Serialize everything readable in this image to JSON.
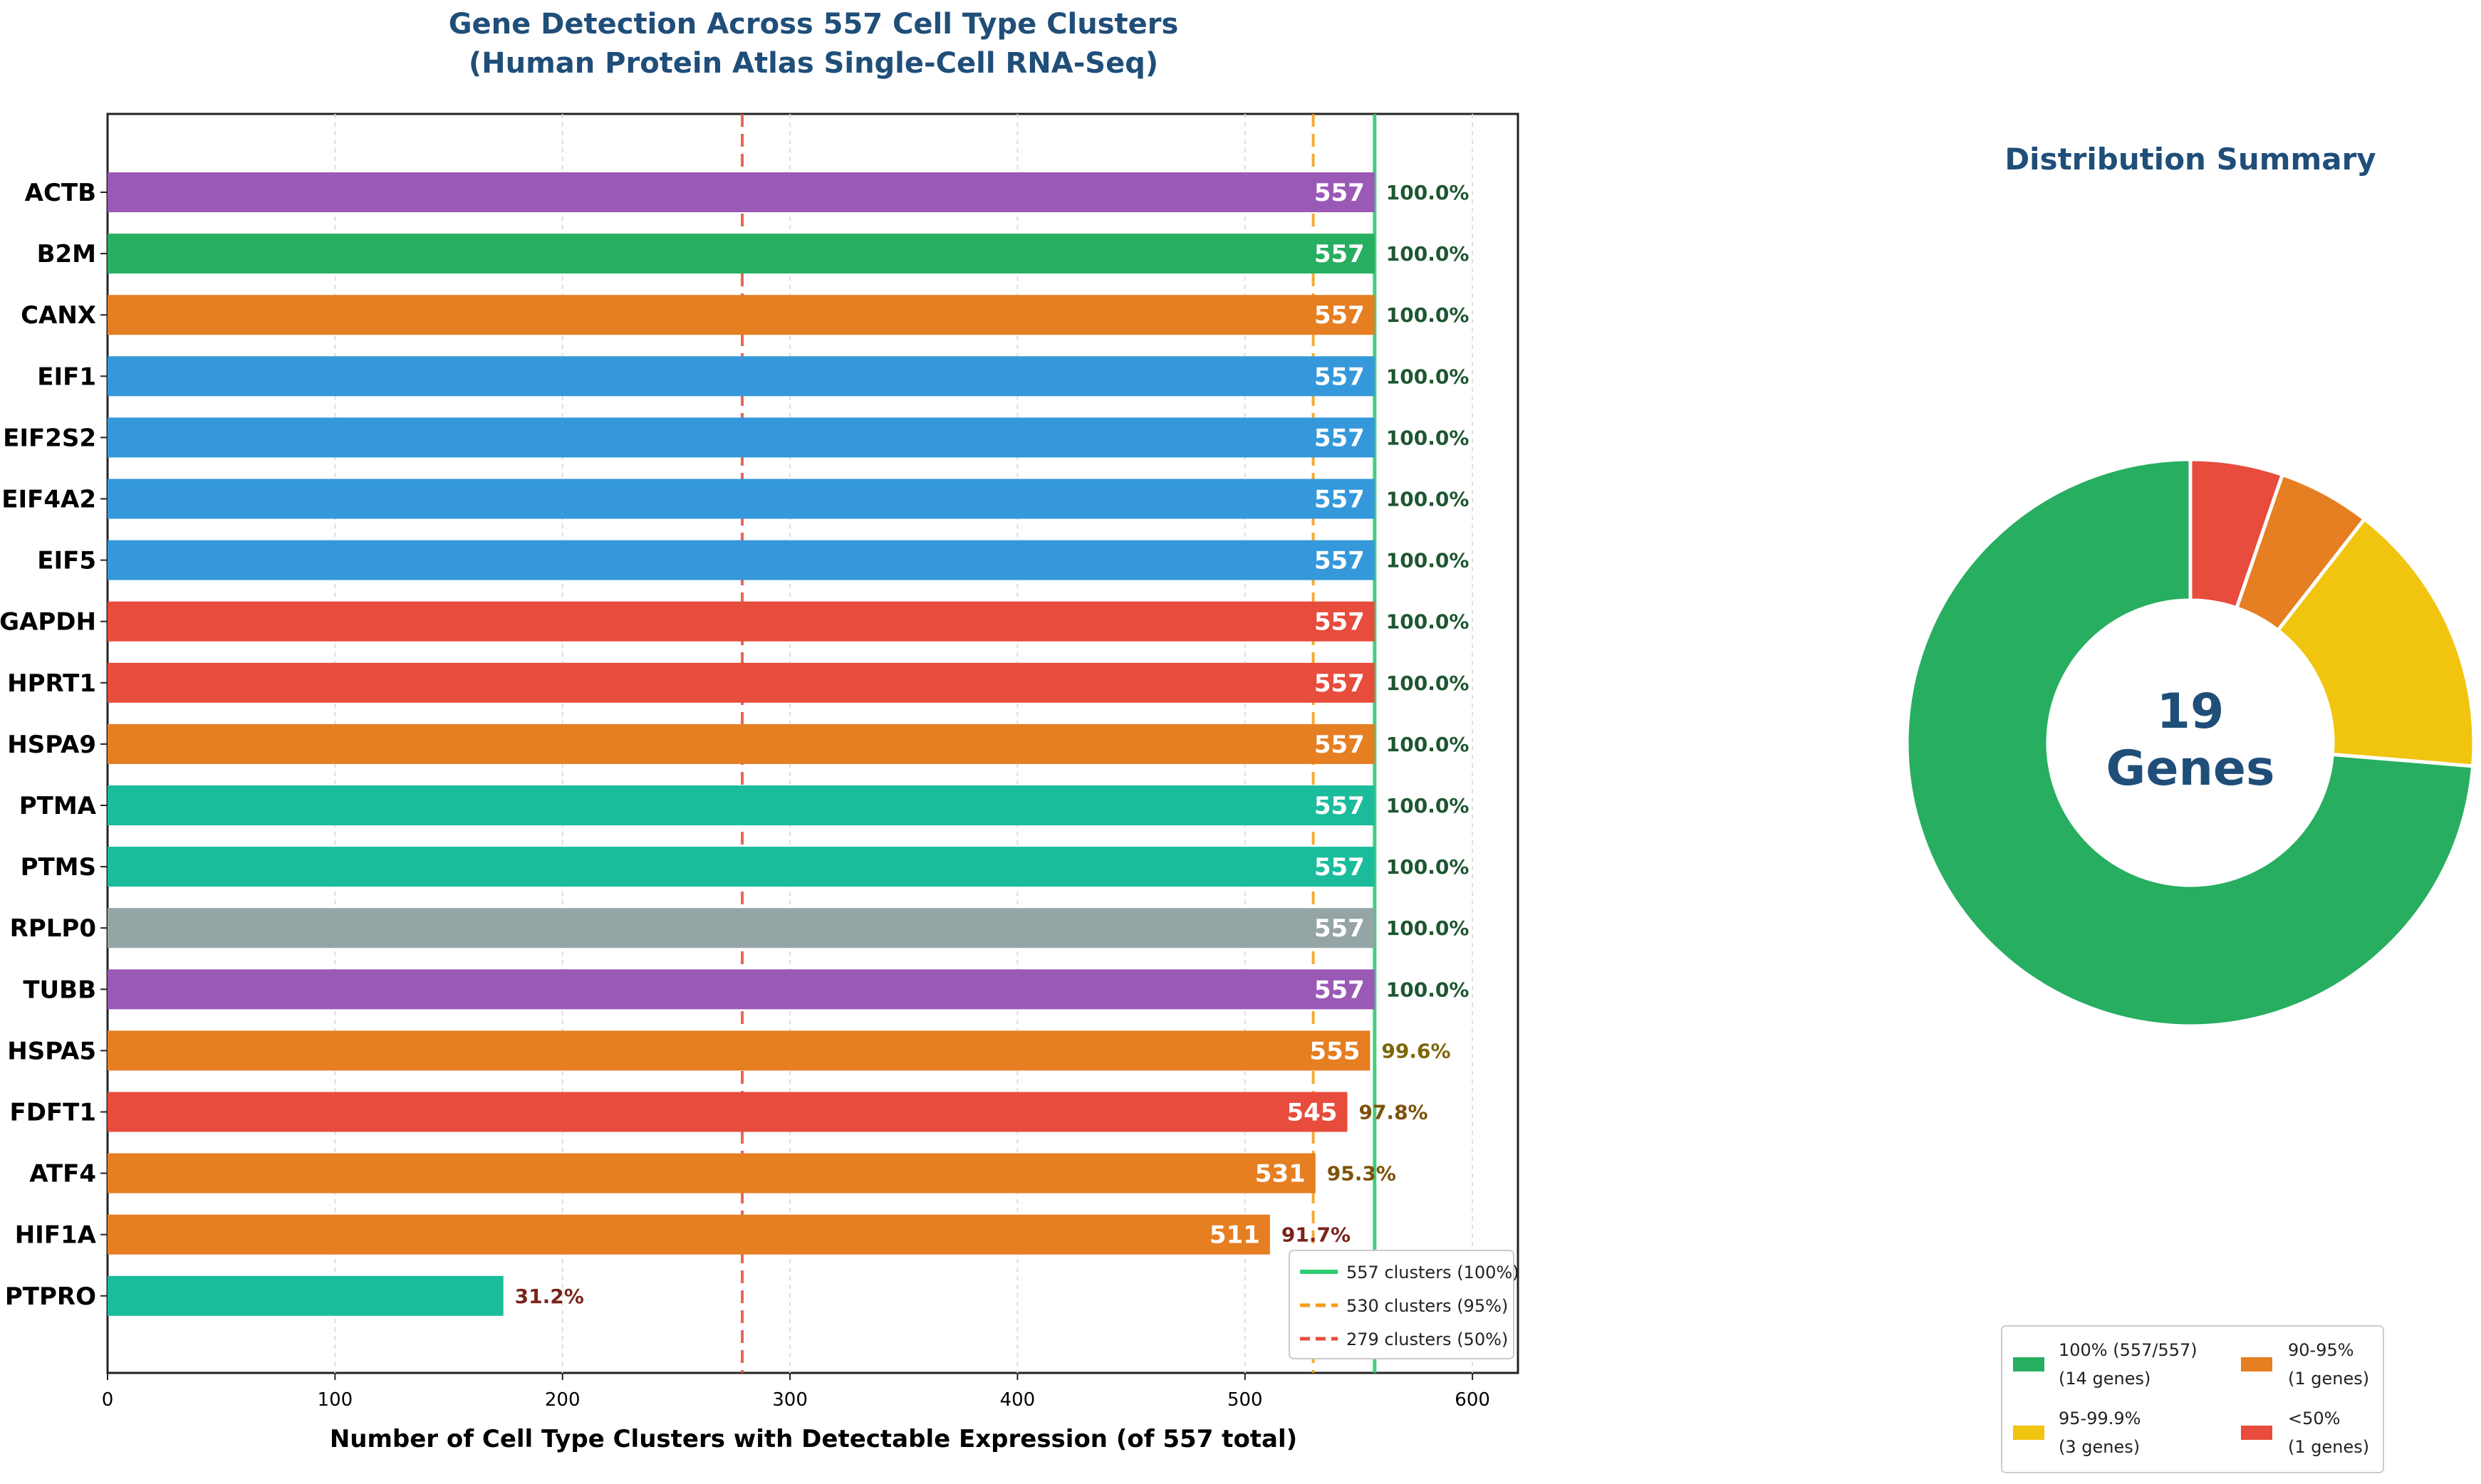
{
  "chart_data": [
    {
      "type": "bar",
      "orientation": "horizontal",
      "title": "Gene Detection Across 557 Cell Type Clusters",
      "subtitle": "(Human Protein Atlas Single-Cell RNA-Seq)",
      "xlabel": "Number of Cell Type Clusters with Detectable Expression (of 557 total)",
      "ylabel": "",
      "xlim": [
        0,
        620
      ],
      "xticks": [
        0,
        100,
        200,
        300,
        400,
        500,
        600
      ],
      "grid": true,
      "categories": [
        "ACTB",
        "B2M",
        "CANX",
        "EIF1",
        "EIF2S2",
        "EIF4A2",
        "EIF5",
        "GAPDH",
        "HPRT1",
        "HSPA9",
        "PTMA",
        "PTMS",
        "RPLP0",
        "TUBB",
        "HSPA5",
        "FDFT1",
        "ATF4",
        "HIF1A",
        "PTPRO"
      ],
      "values": [
        557,
        557,
        557,
        557,
        557,
        557,
        557,
        557,
        557,
        557,
        557,
        557,
        557,
        557,
        555,
        545,
        531,
        511,
        174
      ],
      "value_labels": [
        "557",
        "557",
        "557",
        "557",
        "557",
        "557",
        "557",
        "557",
        "557",
        "557",
        "557",
        "557",
        "557",
        "557",
        "555",
        "545",
        "531",
        "511",
        ""
      ],
      "percent_labels": [
        "100.0%",
        "100.0%",
        "100.0%",
        "100.0%",
        "100.0%",
        "100.0%",
        "100.0%",
        "100.0%",
        "100.0%",
        "100.0%",
        "100.0%",
        "100.0%",
        "100.0%",
        "100.0%",
        "99.6%",
        "97.8%",
        "95.3%",
        "91.7%",
        "31.2%"
      ],
      "bar_colors": [
        "#9b59b6",
        "#27ae60",
        "#e67e22",
        "#3498db",
        "#3498db",
        "#3498db",
        "#3498db",
        "#e74c3c",
        "#e74c3c",
        "#e67e22",
        "#1abc9c",
        "#1abc9c",
        "#95a5a6",
        "#9b59b6",
        "#e67e22",
        "#e74c3c",
        "#e67e22",
        "#e67e22",
        "#1abc9c"
      ],
      "percent_colors": [
        "#1e5631",
        "#1e5631",
        "#1e5631",
        "#1e5631",
        "#1e5631",
        "#1e5631",
        "#1e5631",
        "#1e5631",
        "#1e5631",
        "#1e5631",
        "#1e5631",
        "#1e5631",
        "#1e5631",
        "#1e5631",
        "#7d6608",
        "#7e5109",
        "#7e5109",
        "#7b241c",
        "#7b241c"
      ],
      "reference_lines": [
        {
          "value": 557,
          "label": "557 clusters (100%)",
          "color": "#2ecc71",
          "style": "solid"
        },
        {
          "value": 530,
          "label": "530 clusters (95%)",
          "color": "#f39c12",
          "style": "dashed"
        },
        {
          "value": 279,
          "label": "279 clusters (50%)",
          "color": "#e74c3c",
          "style": "dashed"
        }
      ],
      "legend_position": "lower-right"
    },
    {
      "type": "pie",
      "donut": true,
      "title": "Distribution Summary",
      "center_text": [
        "19",
        "Genes"
      ],
      "slices": [
        {
          "label": "100% (557/557)",
          "sublabel": "(14 genes)",
          "value": 14,
          "color": "#27ae60"
        },
        {
          "label": "95-99.9%",
          "sublabel": "(3 genes)",
          "value": 3,
          "color": "#f1c40f"
        },
        {
          "label": "90-95%",
          "sublabel": "(1 genes)",
          "value": 1,
          "color": "#e67e22"
        },
        {
          "label": "<50%",
          "sublabel": "(1 genes)",
          "value": 1,
          "color": "#e74c3c"
        }
      ],
      "legend_position": "bottom"
    }
  ]
}
